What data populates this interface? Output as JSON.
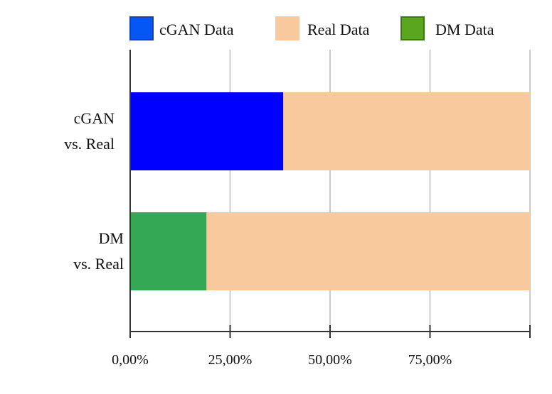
{
  "chart_data": {
    "type": "bar",
    "orientation": "horizontal",
    "stacked": true,
    "categories": [
      [
        "cGAN",
        "vs. Real"
      ],
      [
        "DM",
        "vs. Real"
      ]
    ],
    "bars": [
      {
        "category_index": 0,
        "segments": [
          {
            "series": "cGAN Data",
            "value": 38.3,
            "color": "#0000ff"
          },
          {
            "series": "Real Data",
            "value": 61.7,
            "color": "#f8c99d"
          }
        ]
      },
      {
        "category_index": 1,
        "segments": [
          {
            "series": "DM Data",
            "value": 19.1,
            "color": "#34a853"
          },
          {
            "series": "Real Data",
            "value": 80.9,
            "color": "#f8c99d"
          }
        ]
      }
    ],
    "legend": {
      "placement": "top",
      "items": [
        {
          "label": "cGAN Data",
          "color": "#0457f4",
          "border": "#1b3fae"
        },
        {
          "label": "Real Data",
          "color": "#f8c99d",
          "border": "#f8c99d"
        },
        {
          "label": "DM Data",
          "color": "#5aa61f",
          "border": "#3c7a17"
        }
      ]
    },
    "xlim": [
      0,
      100
    ],
    "x_ticks": [
      0,
      25,
      50,
      75,
      100
    ],
    "x_tick_labels": [
      "0,00%",
      "25,00%",
      "50,00%",
      "75,00%",
      ""
    ],
    "grid": true,
    "title": "",
    "xlabel": "",
    "ylabel": ""
  }
}
